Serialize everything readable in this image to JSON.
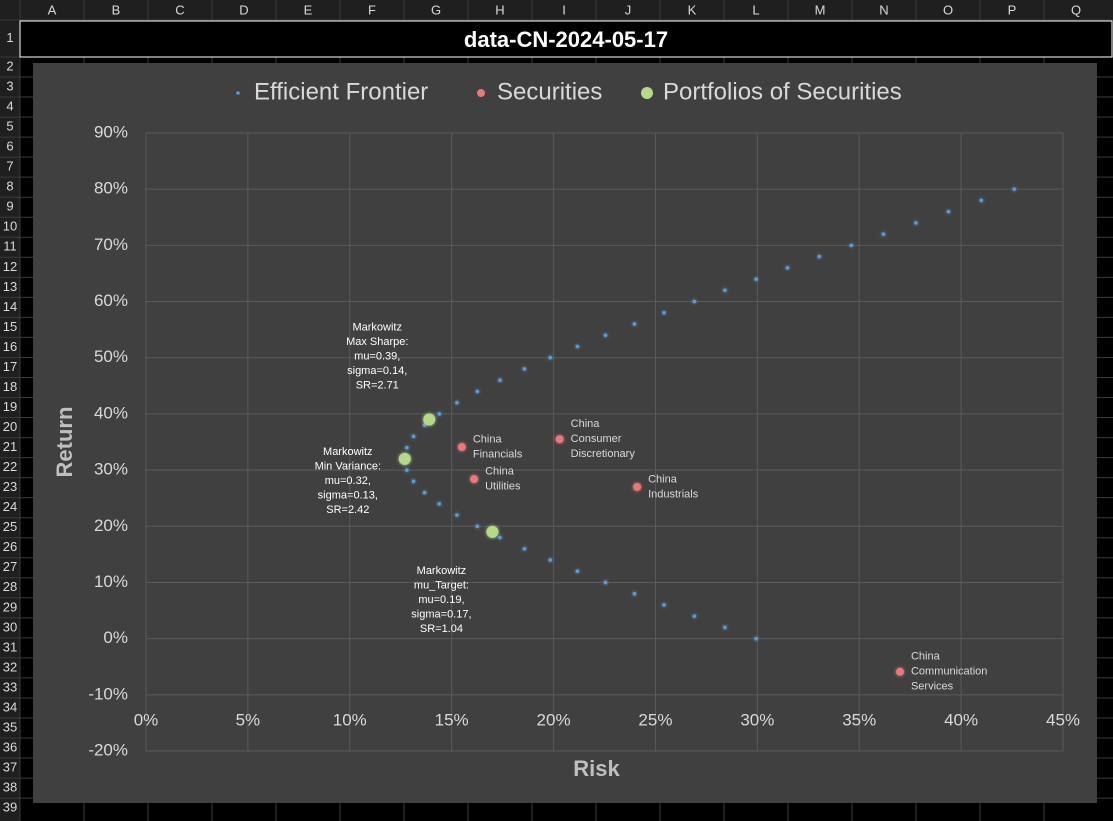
{
  "sheet": {
    "columns": [
      "A",
      "B",
      "C",
      "D",
      "E",
      "F",
      "G",
      "H",
      "I",
      "J",
      "K",
      "L",
      "M",
      "N",
      "O",
      "P",
      "Q"
    ],
    "rows": [
      "1",
      "2",
      "3",
      "4",
      "5",
      "6",
      "7",
      "8",
      "9",
      "10",
      "11",
      "12",
      "13",
      "14",
      "15",
      "16",
      "17",
      "18",
      "19",
      "20",
      "21",
      "22",
      "23",
      "24",
      "25",
      "26",
      "27",
      "28",
      "29",
      "30",
      "31",
      "32",
      "33",
      "34",
      "35",
      "36",
      "37",
      "38",
      "39"
    ],
    "title_cell": "data-CN-2024-05-17"
  },
  "chart_data": {
    "type": "scatter",
    "x_label": "Risk",
    "y_label": "Return",
    "xlim": [
      0,
      45
    ],
    "ylim": [
      -20,
      90
    ],
    "xticks": [
      {
        "value": 0,
        "label": "0%"
      },
      {
        "value": 5,
        "label": "5%"
      },
      {
        "value": 10,
        "label": "10%"
      },
      {
        "value": 15,
        "label": "15%"
      },
      {
        "value": 20,
        "label": "20%"
      },
      {
        "value": 25,
        "label": "25%"
      },
      {
        "value": 30,
        "label": "30%"
      },
      {
        "value": 35,
        "label": "35%"
      },
      {
        "value": 40,
        "label": "40%"
      },
      {
        "value": 45,
        "label": "45%"
      }
    ],
    "yticks": [
      {
        "value": -20,
        "label": "-20%"
      },
      {
        "value": -10,
        "label": "-10%"
      },
      {
        "value": 0,
        "label": "0%"
      },
      {
        "value": 10,
        "label": "10%"
      },
      {
        "value": 20,
        "label": "20%"
      },
      {
        "value": 30,
        "label": "30%"
      },
      {
        "value": 40,
        "label": "40%"
      },
      {
        "value": 50,
        "label": "50%"
      },
      {
        "value": 60,
        "label": "60%"
      },
      {
        "value": 70,
        "label": "70%"
      },
      {
        "value": 80,
        "label": "80%"
      },
      {
        "value": 90,
        "label": "90%"
      }
    ],
    "grid": true,
    "legend": "top",
    "series": [
      {
        "name": "Efficient Frontier",
        "color": "#5b9bd5",
        "x": [
          29.94,
          28.41,
          26.91,
          25.42,
          23.97,
          22.55,
          21.17,
          19.84,
          18.57,
          17.37,
          16.26,
          15.26,
          14.39,
          13.67,
          13.13,
          12.8,
          12.69,
          12.8,
          13.13,
          13.67,
          14.39,
          15.26,
          16.26,
          17.37,
          18.57,
          19.84,
          21.17,
          22.55,
          23.97,
          25.42,
          26.91,
          28.41,
          29.94,
          31.48,
          33.04,
          34.61,
          36.19,
          37.78,
          39.38,
          40.99,
          42.61
        ],
        "values": [
          0,
          2,
          4,
          6,
          8,
          10,
          12,
          14,
          16,
          18,
          20,
          22,
          24,
          26,
          28,
          30,
          32,
          34,
          36,
          38,
          40,
          42,
          44,
          46,
          48,
          50,
          52,
          54,
          56,
          58,
          60,
          62,
          64,
          66,
          68,
          70,
          72,
          74,
          76,
          78,
          80
        ]
      },
      {
        "name": "Securities",
        "color": "#e8787a",
        "x": [
          15.5,
          16.1,
          20.3,
          24.1,
          37.0
        ],
        "values": [
          34.1,
          28.4,
          35.5,
          27.0,
          -5.9
        ],
        "point_labels": [
          [
            "China",
            "Financials"
          ],
          [
            "China",
            "Utilities"
          ],
          [
            "China",
            "Consumer",
            "Discretionary"
          ],
          [
            "China",
            "Industrials"
          ],
          [
            "China",
            "Communication",
            "Services"
          ]
        ]
      },
      {
        "name": "Portfolios of Securities",
        "color": "#b5d98a",
        "x": [
          13.9,
          12.7,
          17.0
        ],
        "values": [
          39,
          32,
          19
        ],
        "point_labels": [
          [
            "Markowitz",
            "Max Sharpe:",
            "mu=0.39,",
            "sigma=0.14,",
            "SR=2.71"
          ],
          [
            "Markowitz",
            "Min Variance:",
            "mu=0.32,",
            "sigma=0.13,",
            "SR=2.42"
          ],
          [
            "Markowitz",
            "mu_Target:",
            "mu=0.19,",
            "sigma=0.17,",
            "SR=1.04"
          ]
        ]
      }
    ]
  }
}
